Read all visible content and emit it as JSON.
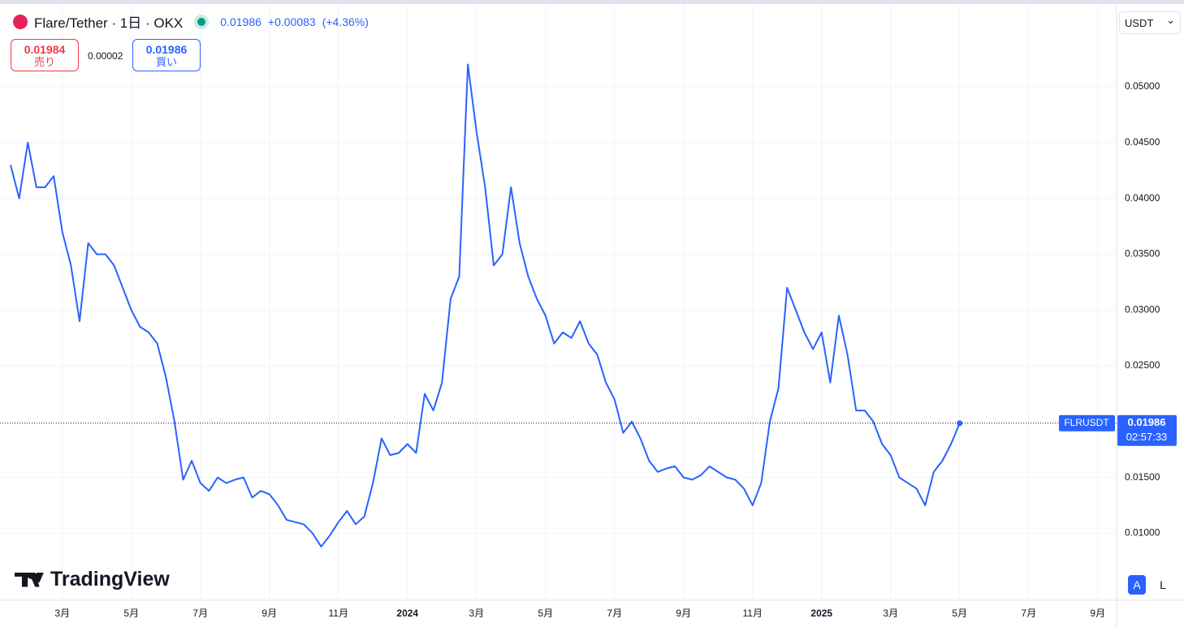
{
  "header": {
    "title": "Flare/Tether · 1日 · OKX",
    "price": "0.01986",
    "change": "+0.00083",
    "change_pct": "(+4.36%)",
    "bid": "0.01984",
    "bid_label": "売り",
    "spread": "0.00002",
    "ask": "0.01986",
    "ask_label": "買い",
    "currency": "USDT",
    "brand": "TradingView",
    "button_a": "A",
    "button_l": "L"
  },
  "chart_data": {
    "type": "line",
    "categories": [
      null,
      null,
      null,
      null,
      null,
      null,
      "3月",
      null,
      null,
      null,
      null,
      null,
      null,
      null,
      "5月",
      null,
      null,
      null,
      null,
      null,
      null,
      null,
      "7月",
      null,
      null,
      null,
      null,
      null,
      null,
      null,
      "9月",
      null,
      null,
      null,
      null,
      null,
      null,
      null,
      "11月",
      null,
      null,
      null,
      null,
      null,
      null,
      null,
      "2024",
      null,
      null,
      null,
      null,
      null,
      null,
      null,
      "3月",
      null,
      null,
      null,
      null,
      null,
      null,
      null,
      "5月",
      null,
      null,
      null,
      null,
      null,
      null,
      null,
      "7月",
      null,
      null,
      null,
      null,
      null,
      null,
      null,
      "9月",
      null,
      null,
      null,
      null,
      null,
      null,
      null,
      "11月",
      null,
      null,
      null,
      null,
      null,
      null,
      null,
      "2025",
      null,
      null,
      null,
      null,
      null,
      null,
      null,
      "3月",
      null,
      null,
      null,
      null,
      null,
      null,
      null,
      "5月",
      null,
      null,
      null,
      null,
      null,
      null,
      null,
      "7月",
      null,
      null,
      null,
      null,
      null,
      null,
      null,
      "9月",
      null,
      null
    ],
    "series": [
      {
        "name": "FLRUSDT",
        "color": "#2962ff",
        "values": [
          0.043,
          0.04,
          0.045,
          0.041,
          0.041,
          0.042,
          0.037,
          0.034,
          0.029,
          0.036,
          0.035,
          0.035,
          0.034,
          0.032,
          0.03,
          0.0285,
          0.028,
          0.027,
          0.024,
          0.02,
          0.0148,
          0.0165,
          0.0145,
          0.0138,
          0.015,
          0.0145,
          0.0148,
          0.015,
          0.0132,
          0.0138,
          0.0135,
          0.0125,
          0.0112,
          0.011,
          0.0108,
          0.01,
          0.0088,
          0.0098,
          0.011,
          0.012,
          0.0108,
          0.0115,
          0.0145,
          0.0185,
          0.017,
          0.0172,
          0.018,
          0.0172,
          0.0225,
          0.021,
          0.0235,
          0.031,
          0.033,
          0.052,
          0.046,
          0.041,
          0.034,
          0.035,
          0.041,
          0.036,
          0.033,
          0.031,
          0.0295,
          0.027,
          0.028,
          0.0275,
          0.029,
          0.027,
          0.026,
          0.0235,
          0.022,
          0.019,
          0.02,
          0.0185,
          0.0165,
          0.0155,
          0.0158,
          0.016,
          0.015,
          0.0148,
          0.0152,
          0.016,
          0.0155,
          0.015,
          0.0148,
          0.014,
          0.0125,
          0.0145,
          0.02,
          0.023,
          0.032,
          0.03,
          0.028,
          0.0265,
          0.028,
          0.0235,
          0.0295,
          0.026,
          0.021,
          0.021,
          0.02,
          0.018,
          0.017,
          0.015,
          0.0145,
          0.014,
          0.0125,
          0.0155,
          0.0165,
          0.018,
          0.01986,
          null,
          null,
          null,
          null,
          null,
          null,
          null,
          null,
          null,
          null,
          null,
          null,
          null,
          null,
          null,
          null,
          null,
          null
        ]
      }
    ],
    "last_value_label": "0.01986",
    "countdown": "02:57:33",
    "ylim": [
      0.004,
      0.0572
    ],
    "yticks": [
      {
        "value": 0.01,
        "label": "0.01000"
      },
      {
        "value": 0.015,
        "label": "0.01500"
      },
      {
        "value": 0.02,
        "label": "0.02000"
      },
      {
        "value": 0.025,
        "label": "0.02500"
      },
      {
        "value": 0.03,
        "label": "0.03000"
      },
      {
        "value": 0.035,
        "label": "0.03500"
      },
      {
        "value": 0.04,
        "label": "0.04000"
      },
      {
        "value": 0.045,
        "label": "0.04500"
      },
      {
        "value": 0.05,
        "label": "0.05000"
      }
    ],
    "grid": true
  }
}
